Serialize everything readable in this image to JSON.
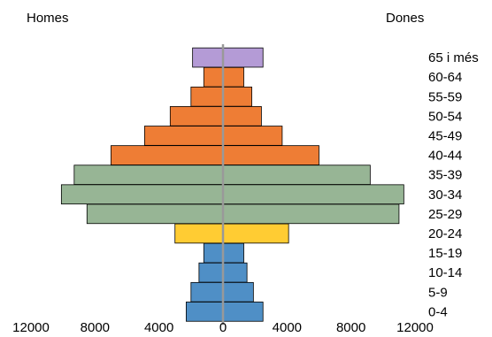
{
  "chart_data": {
    "type": "bar",
    "orientation": "horizontal-diverging",
    "left_label": "Homes",
    "right_label": "Dones",
    "categories": [
      "0-4",
      "5-9",
      "10-14",
      "15-19",
      "20-24",
      "25-29",
      "30-34",
      "35-39",
      "40-44",
      "45-49",
      "50-54",
      "55-59",
      "60-64",
      "65 i més"
    ],
    "series": [
      {
        "name": "Homes",
        "values": [
          2300,
          2000,
          1500,
          1200,
          3000,
          8500,
          10100,
          9300,
          7000,
          4900,
          3300,
          2000,
          1200,
          1900
        ]
      },
      {
        "name": "Dones",
        "values": [
          2500,
          1900,
          1500,
          1300,
          4100,
          11000,
          11300,
          9200,
          6000,
          3700,
          2400,
          1800,
          1300,
          2500
        ]
      }
    ],
    "group_colors": [
      "#4f8fc6",
      "#4f8fc6",
      "#4f8fc6",
      "#4f8fc6",
      "#ffcc33",
      "#97b595",
      "#97b595",
      "#97b595",
      "#ee7d35",
      "#ee7d35",
      "#ee7d35",
      "#ee7d35",
      "#ee7d35",
      "#b49bd6"
    ],
    "x_ticks": [
      "12000",
      "8000",
      "4000",
      "0",
      "4000",
      "8000",
      "12000"
    ],
    "xlim": [
      -12000,
      12000
    ],
    "center_line_color": "#999999",
    "grid": false
  }
}
